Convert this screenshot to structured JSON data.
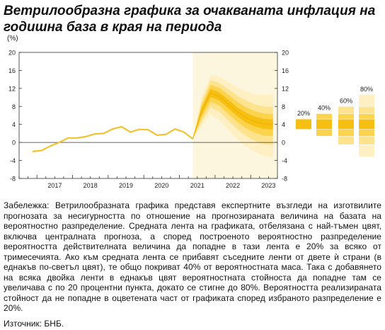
{
  "title": "Ветрилообразна графика за очакваната инфлация на годишна база в края на периода",
  "note": "Забележка: Ветрилообразната графика представя експертните възгледи на изготвилите прогнозата за несигурността по отношение на прогнозираната величина на базата на вероятностно разпределение. Средната лента на графиката, отбелязана с най-тъмен цвят, включва централната прогноза, а според построеното вероятностно разпределение вероятността действителната величина да попадне в тази лента е 20% за всяко от тримесечията. Ако към средната лента се прибавят съседните ленти от двете ѝ страни (в еднакъв по-светъл цвят), те общо покриват 40% от вероятностната маса. Така с добавянето на всяка двойка ленти в еднакъв цвят вероятностната стойностa да попадне там се увеличава с по 20 процентни пункта, докато се стигне до 80%. Вероятността реализираната стойност да не попадне в оцветената част от графиката според избраното разпределение е 20%.",
  "source": "Източник: БНБ.",
  "chart_data": {
    "type": "line",
    "unit": "(%)",
    "ylim": [
      -8,
      20
    ],
    "yticks": [
      -8,
      -4,
      0,
      4,
      8,
      12,
      16,
      20
    ],
    "x_years": [
      "2017",
      "2018",
      "2019",
      "2020",
      "2021",
      "2022",
      "2023"
    ],
    "grid": false,
    "colors": {
      "line": "#f2c230",
      "band20": "#f7bf12",
      "band40": "#fbd34d",
      "band60": "#fde38d",
      "band80": "#fff0c4"
    },
    "history": {
      "x": [
        2016.875,
        2017.125,
        2017.375,
        2017.625,
        2017.875,
        2018.125,
        2018.375,
        2018.625,
        2018.875,
        2019.125,
        2019.375,
        2019.625,
        2019.875,
        2020.125,
        2020.375,
        2020.625,
        2020.875,
        2021.125,
        2021.375
      ],
      "y": [
        -2.0,
        -1.8,
        -0.8,
        0.0,
        1.0,
        1.0,
        1.3,
        1.9,
        2.0,
        3.0,
        3.5,
        2.3,
        2.9,
        2.8,
        1.6,
        1.8,
        3.0,
        2.3,
        0.8
      ]
    },
    "forecast": {
      "x": [
        2021.375,
        2021.625,
        2021.875,
        2022.125,
        2022.375,
        2022.625,
        2022.875,
        2023.125,
        2023.375,
        2023.625
      ],
      "central": [
        0.8,
        7.0,
        11.0,
        10.2,
        8.5,
        6.8,
        5.5,
        4.6,
        4.1,
        4.0
      ],
      "band20": {
        "low": [
          0.8,
          6.3,
          10.1,
          9.3,
          7.5,
          5.8,
          4.4,
          3.5,
          3.0,
          2.9
        ],
        "high": [
          0.8,
          7.7,
          11.9,
          11.1,
          9.5,
          7.8,
          6.6,
          5.7,
          5.2,
          5.1
        ]
      },
      "band40": {
        "low": [
          0.8,
          5.5,
          9.0,
          8.2,
          6.3,
          4.5,
          3.1,
          2.1,
          1.5,
          1.4
        ],
        "high": [
          0.8,
          8.4,
          12.8,
          12.1,
          10.6,
          9.0,
          7.8,
          6.9,
          6.4,
          6.3
        ]
      },
      "band60": {
        "low": [
          0.8,
          4.6,
          7.8,
          6.8,
          4.8,
          2.9,
          1.4,
          0.3,
          -0.4,
          -0.6
        ],
        "high": [
          0.8,
          9.2,
          13.8,
          13.2,
          11.8,
          10.4,
          9.3,
          8.4,
          8.0,
          7.9
        ]
      },
      "band80": {
        "low": [
          0.8,
          3.6,
          6.3,
          5.0,
          2.7,
          0.7,
          -0.9,
          -2.1,
          -3.0,
          -3.3
        ],
        "high": [
          0.8,
          10.1,
          15.0,
          14.6,
          13.4,
          12.2,
          11.3,
          10.7,
          10.5,
          10.7
        ]
      }
    },
    "legend": [
      {
        "label": "20%",
        "low": 2.9,
        "high": 5.2
      },
      {
        "label": "40%",
        "low": 1.4,
        "high": 6.4
      },
      {
        "label": "60%",
        "low": -0.5,
        "high": 8.0
      },
      {
        "label": "80%",
        "low": -3.2,
        "high": 10.6
      }
    ]
  }
}
